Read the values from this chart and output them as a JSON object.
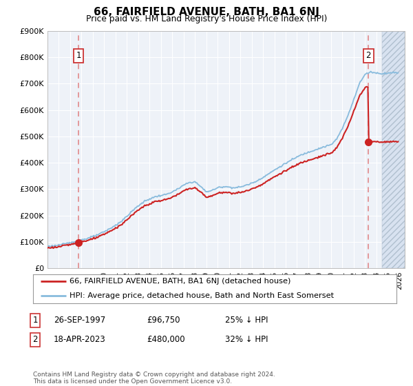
{
  "title": "66, FAIRFIELD AVENUE, BATH, BA1 6NJ",
  "subtitle": "Price paid vs. HM Land Registry's House Price Index (HPI)",
  "footer": "Contains HM Land Registry data © Crown copyright and database right 2024.\nThis data is licensed under the Open Government Licence v3.0.",
  "legend_line1": "66, FAIRFIELD AVENUE, BATH, BA1 6NJ (detached house)",
  "legend_line2": "HPI: Average price, detached house, Bath and North East Somerset",
  "annotation1": {
    "label": "1",
    "date_str": "26-SEP-1997",
    "price": "£96,750",
    "note": "25% ↓ HPI"
  },
  "annotation2": {
    "label": "2",
    "date_str": "18-APR-2023",
    "price": "£480,000",
    "note": "32% ↓ HPI"
  },
  "sale1_x": 1997.74,
  "sale1_y": 96750,
  "sale2_x": 2023.3,
  "sale2_y": 480000,
  "ylim": [
    0,
    900000
  ],
  "xlim_start": 1995.0,
  "xlim_end": 2026.5,
  "hpi_line_color": "#88bbdd",
  "price_line_color": "#cc2222",
  "sale_dot_color": "#cc2222",
  "dashed_line_color": "#e08080",
  "plot_bg": "#eef2f8",
  "hatch_start": 2024.5,
  "annotation_box_color": "#cc3333"
}
